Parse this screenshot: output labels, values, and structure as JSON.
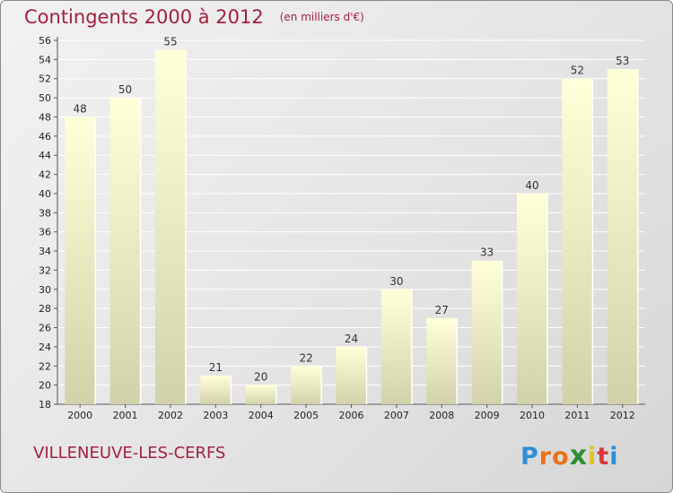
{
  "header": {
    "title": "Contingents 2000 à 2012",
    "unit_note": "(en milliers d'€)"
  },
  "footer": {
    "place_name": "VILLENEUVE-LES-CERFS",
    "brand": {
      "text": "Proxiti",
      "letter_colors": [
        "#2f8fd6",
        "#e8731a",
        "#e8731a",
        "#2c8f34",
        "#e2c51c",
        "#d9383c",
        "#2f8fd6"
      ]
    }
  },
  "chart_data": {
    "type": "bar",
    "title": "Contingents 2000 à 2012",
    "subtitle": "(en milliers d'€)",
    "xlabel": "",
    "ylabel": "",
    "categories": [
      "2000",
      "2001",
      "2002",
      "2003",
      "2004",
      "2005",
      "2006",
      "2007",
      "2008",
      "2009",
      "2010",
      "2011",
      "2012"
    ],
    "values": [
      48,
      50,
      55,
      21,
      20,
      22,
      24,
      30,
      27,
      33,
      40,
      52,
      53
    ],
    "data_labels": [
      "48",
      "50",
      "55",
      "21",
      "20",
      "22",
      "24",
      "30",
      "27",
      "33",
      "40",
      "52",
      "53"
    ],
    "ylim": [
      18,
      56
    ],
    "yticks": [
      18,
      20,
      22,
      24,
      26,
      28,
      30,
      32,
      34,
      36,
      38,
      40,
      42,
      44,
      46,
      48,
      50,
      52,
      54,
      56
    ],
    "grid": true,
    "legend": "none",
    "colors": {
      "title": "#a3203e",
      "bar_top": "#ffffd9",
      "bar_bottom": "#d2d2aa",
      "grid": "#ffffff",
      "axis_text": "#222222"
    }
  }
}
